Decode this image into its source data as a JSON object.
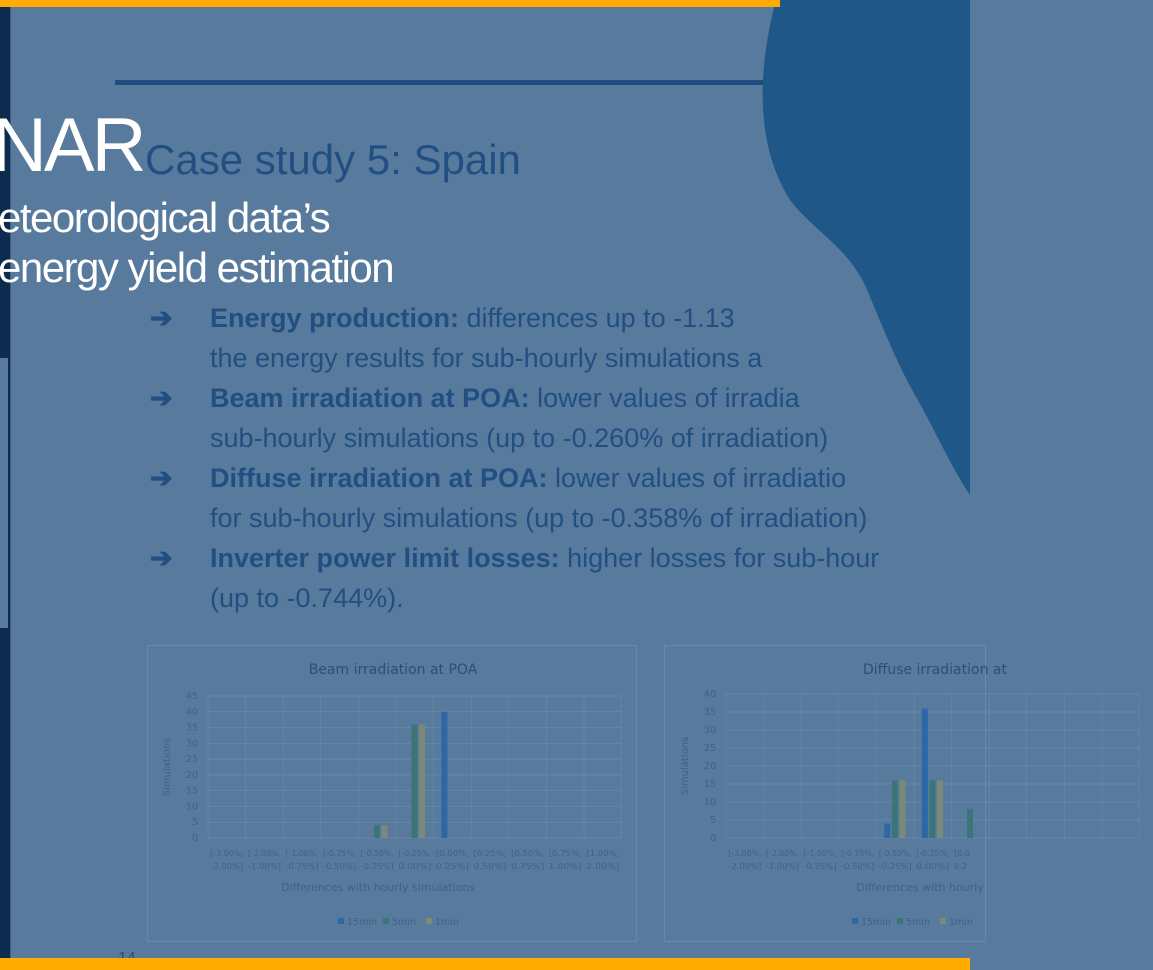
{
  "overlay": {
    "title_fragment": "NAR",
    "subtitle_line1": "eteorological data’s",
    "subtitle_line2": "energy yield estimation"
  },
  "slide": {
    "title": "Case study 5: Spain",
    "bullets": [
      {
        "bold": "Energy production:",
        "text": " differences up to -1.13",
        "cont": "the energy results for sub-hourly simulations a"
      },
      {
        "bold": "Beam irradiation at POA:",
        "text": " lower values of irradia",
        "cont": "sub-hourly simulations (up to -0.260% of irradiation)"
      },
      {
        "bold": "Diffuse irradiation at POA:",
        "text": " lower values of irradiatio",
        "cont": "for sub-hourly simulations (up to -0.358% of irradiation)"
      },
      {
        "bold": "Inverter power limit losses:",
        "text": " higher losses for sub-hour",
        "cont": "(up to -0.744%)."
      }
    ],
    "arrow_glyph": "➔",
    "page_fragment": "14"
  },
  "colors": {
    "accent_bar": "#ffab00",
    "background": "#587a9d",
    "blob": "#1e5788",
    "text": "#224f82",
    "s15": "#2e67a8",
    "s5": "#3c7578",
    "s1": "#7a8a76"
  },
  "chart_data": [
    {
      "type": "bar",
      "title": "Beam irradiation at POA",
      "xlabel": "Differences with hourly simulations",
      "ylabel": "Simulations",
      "ylim": [
        0,
        45
      ],
      "yticks": [
        0,
        5,
        10,
        15,
        20,
        25,
        30,
        35,
        40,
        45
      ],
      "grid": true,
      "legend": "bottom",
      "categories": [
        [
          "[-3.00%,",
          "-2.00%]"
        ],
        [
          "[-2.00%,",
          "-1.00%]"
        ],
        [
          "[-1.00%,",
          "-0.75%]"
        ],
        [
          "[-0.75%,",
          "-0.50%]"
        ],
        [
          "[-0.50%,",
          "-0.25%]"
        ],
        [
          "[-0.25%,",
          "0.00%]"
        ],
        [
          "[0.00%,",
          "0.25%]"
        ],
        [
          "[0.25%,",
          "0.50%]"
        ],
        [
          "[0.50%,",
          "0.75%]"
        ],
        [
          "[0.75%,",
          "1.00%]"
        ],
        [
          "[1.00%,",
          "2.00%]"
        ]
      ],
      "series": [
        {
          "name": "15min",
          "values": [
            0,
            0,
            0,
            0,
            0,
            0,
            40,
            0,
            0,
            0,
            0
          ]
        },
        {
          "name": "5min",
          "values": [
            0,
            0,
            0,
            0,
            4,
            36,
            0,
            0,
            0,
            0,
            0
          ]
        },
        {
          "name": "1min",
          "values": [
            0,
            0,
            0,
            0,
            4,
            36,
            0,
            0,
            0,
            0,
            0
          ]
        }
      ]
    },
    {
      "type": "bar",
      "title": "Diffuse irradiation at",
      "xlabel": "Differences with hourly",
      "ylabel": "Simulations",
      "ylim": [
        0,
        40
      ],
      "yticks": [
        0,
        5,
        10,
        15,
        20,
        25,
        30,
        35,
        40
      ],
      "grid": true,
      "legend": "bottom",
      "categories": [
        [
          "[-3.00%,",
          "-2.00%]"
        ],
        [
          "[-2.00%,",
          "-1.00%]"
        ],
        [
          "[-1.00%,",
          "-0.75%]"
        ],
        [
          "[-0.75%,",
          "-0.50%]"
        ],
        [
          "[-0.50%,",
          "-0.25%]"
        ],
        [
          "[-0.25%,",
          "0.00%]"
        ],
        [
          "[0.0",
          "0.2"
        ]
      ],
      "series": [
        {
          "name": "15min",
          "values": [
            0,
            0,
            0,
            0,
            4,
            36,
            null
          ]
        },
        {
          "name": "5min",
          "values": [
            0,
            0,
            0,
            0,
            16,
            16,
            8
          ]
        },
        {
          "name": "1min",
          "values": [
            0,
            0,
            0,
            0,
            16,
            16,
            null
          ]
        }
      ]
    }
  ]
}
